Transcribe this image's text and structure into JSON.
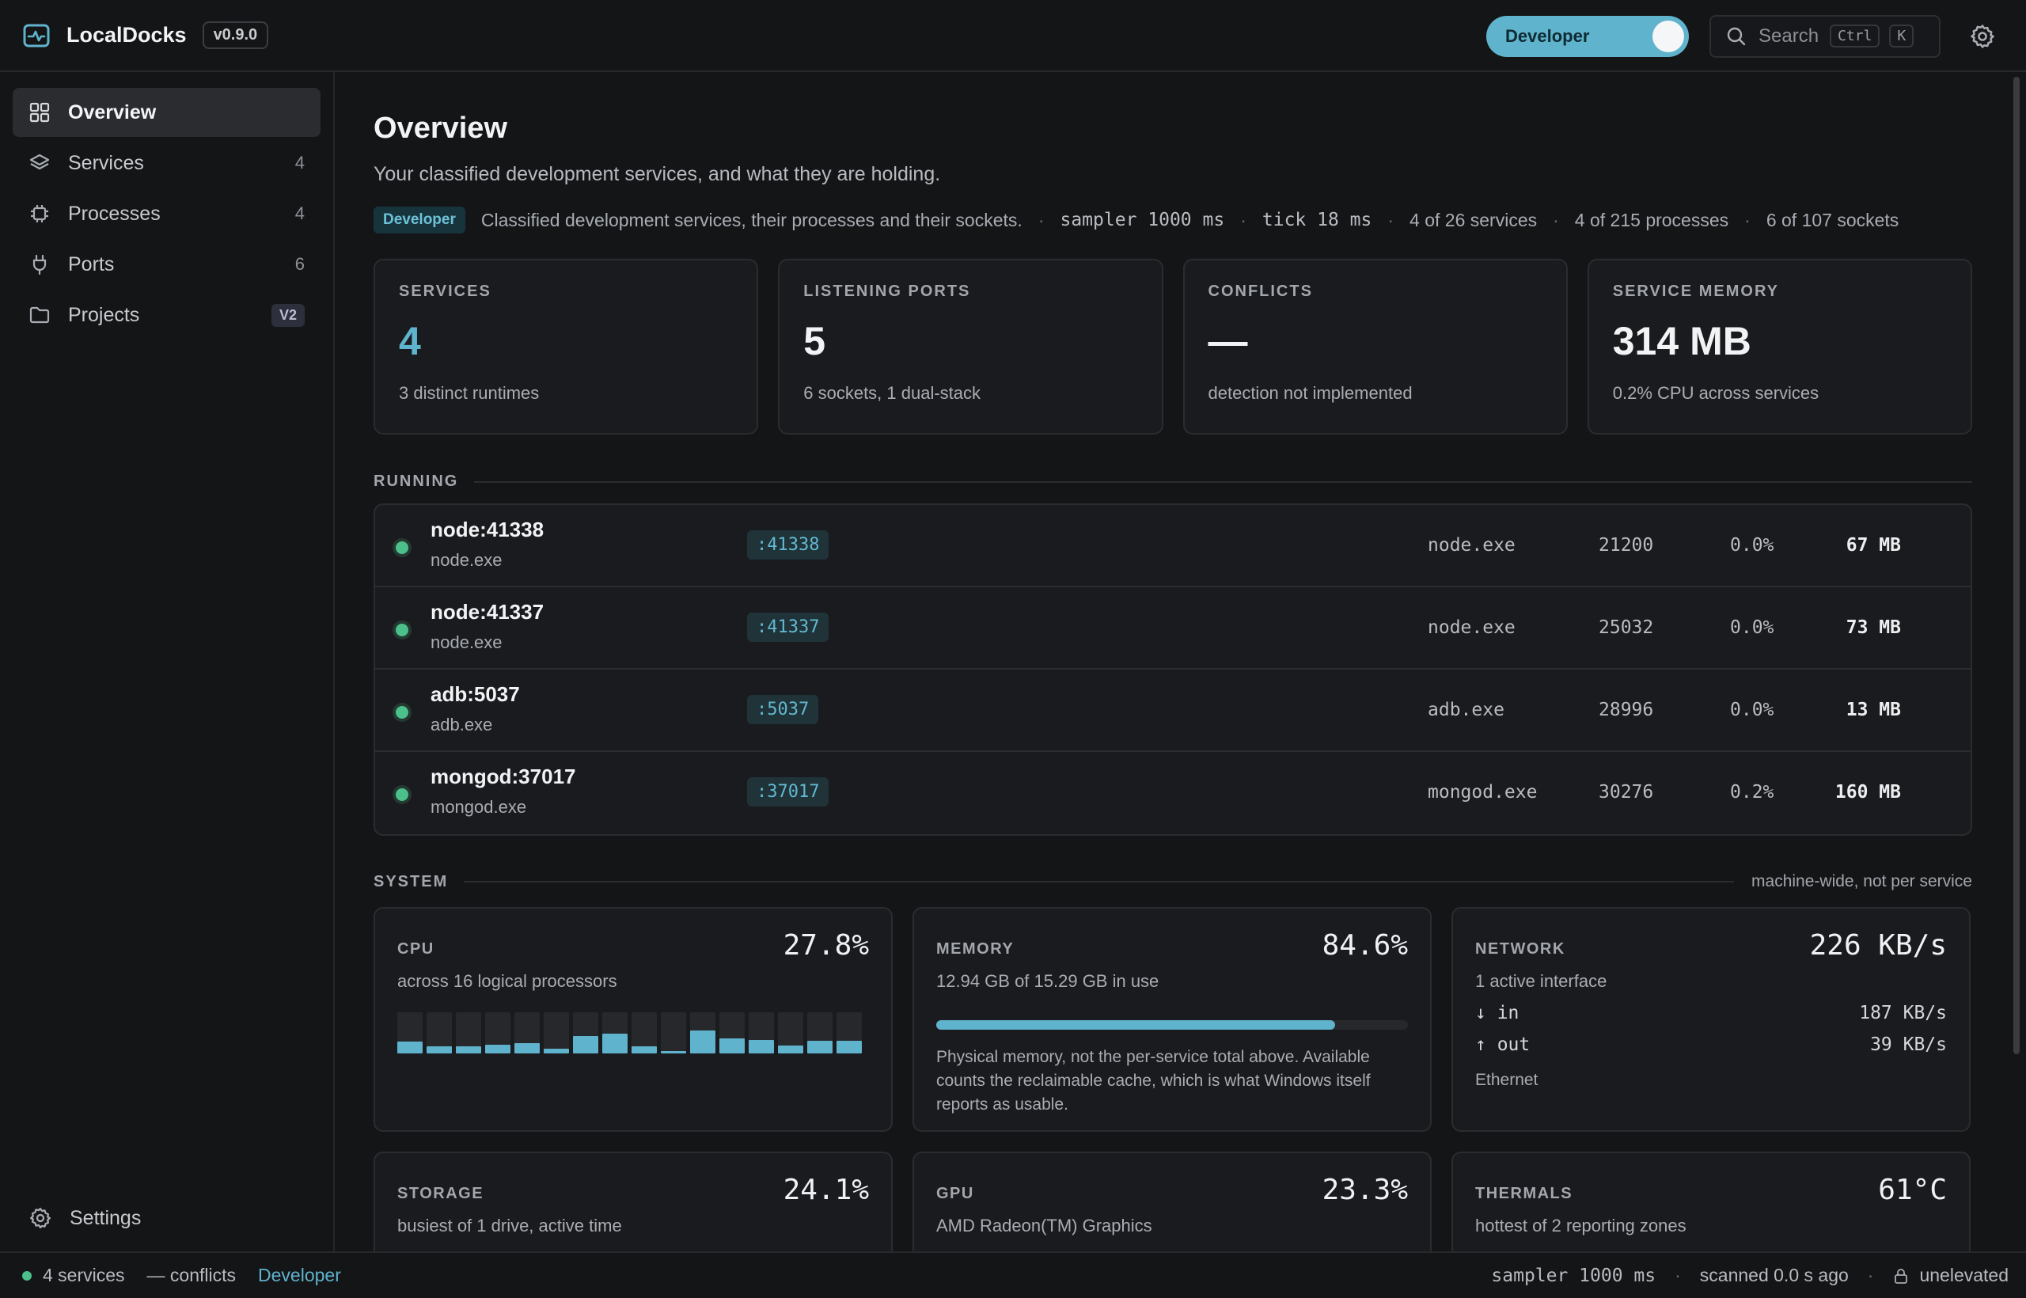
{
  "app": {
    "name": "LocalDocks",
    "version": "v0.9.0",
    "mode_label": "Developer",
    "search_placeholder": "Search",
    "search_keys": [
      "Ctrl",
      "K"
    ]
  },
  "sidebar": {
    "items": [
      {
        "label": "Overview",
        "count": "",
        "icon": "grid-icon",
        "active": true
      },
      {
        "label": "Services",
        "count": "4",
        "icon": "layers-icon"
      },
      {
        "label": "Processes",
        "count": "4",
        "icon": "chip-icon"
      },
      {
        "label": "Ports",
        "count": "6",
        "icon": "plug-icon"
      },
      {
        "label": "Projects",
        "badge": "V2",
        "icon": "folder-icon"
      }
    ],
    "settings_label": "Settings"
  },
  "page": {
    "title": "Overview",
    "subtitle": "Your classified development services, and what they are holding.",
    "meta": {
      "chip": "Developer",
      "description": "Classified development services, their processes and their sockets.",
      "sampler": "sampler 1000 ms",
      "tick": "tick 18 ms",
      "services": "4 of 26 services",
      "processes": "4 of 215 processes",
      "sockets": "6 of 107 sockets"
    }
  },
  "stats": [
    {
      "label": "SERVICES",
      "value": "4",
      "sub": "3 distinct runtimes"
    },
    {
      "label": "LISTENING PORTS",
      "value": "5",
      "sub": "6 sockets, 1 dual-stack"
    },
    {
      "label": "CONFLICTS",
      "value": "—",
      "sub": "detection not implemented"
    },
    {
      "label": "SERVICE MEMORY",
      "value": "314 MB",
      "sub": "0.2% CPU across services"
    }
  ],
  "running": {
    "title": "RUNNING",
    "rows": [
      {
        "name": "node:41338",
        "process": "node.exe",
        "port": ":41338",
        "exe": "node.exe",
        "pid": "21200",
        "cpu": "0.0%",
        "mem": "67 MB"
      },
      {
        "name": "node:41337",
        "process": "node.exe",
        "port": ":41337",
        "exe": "node.exe",
        "pid": "25032",
        "cpu": "0.0%",
        "mem": "73 MB"
      },
      {
        "name": "adb:5037",
        "process": "adb.exe",
        "port": ":5037",
        "exe": "adb.exe",
        "pid": "28996",
        "cpu": "0.0%",
        "mem": "13 MB"
      },
      {
        "name": "mongod:37017",
        "process": "mongod.exe",
        "port": ":37017",
        "exe": "mongod.exe",
        "pid": "30276",
        "cpu": "0.2%",
        "mem": "160 MB"
      }
    ]
  },
  "system": {
    "title": "SYSTEM",
    "note": "machine-wide, not per service",
    "cpu": {
      "label": "CPU",
      "value": "27.8%",
      "sub": "across 16 logical processors",
      "cores": [
        0.28,
        0.18,
        0.18,
        0.22,
        0.25,
        0.12,
        0.42,
        0.48,
        0.18,
        0.06,
        0.55,
        0.36,
        0.32,
        0.2,
        0.3,
        0.3
      ]
    },
    "memory": {
      "label": "MEMORY",
      "value": "84.6%",
      "sub": "12.94 GB of 15.29 GB in use",
      "fraction": 0.846,
      "note": "Physical memory, not the per-service total above. Available counts the reclaimable cache, which is what Windows itself reports as usable."
    },
    "network": {
      "label": "NETWORK",
      "value": "226 KB/s",
      "sub": "1 active interface",
      "in_label": "↓ in",
      "in_value": "187 KB/s",
      "out_label": "↑ out",
      "out_value": "39 KB/s",
      "interface": "Ethernet"
    },
    "storage": {
      "label": "STORAGE",
      "value": "24.1%",
      "sub": "busiest of 1 drive, active time"
    },
    "gpu": {
      "label": "GPU",
      "value": "23.3%",
      "sub": "AMD Radeon(TM) Graphics"
    },
    "thermals": {
      "label": "THERMALS",
      "value": "61°C",
      "sub": "hottest of 2 reporting zones"
    }
  },
  "statusbar": {
    "services": "4 services",
    "conflicts": "— conflicts",
    "mode": "Developer",
    "sampler": "sampler 1000 ms",
    "scanned": "scanned 0.0 s ago",
    "elevation": "unelevated"
  },
  "colors": {
    "accent": "#5fb3cc",
    "running": "#4cc08a",
    "background": "#141517",
    "card": "#1a1b1e"
  }
}
